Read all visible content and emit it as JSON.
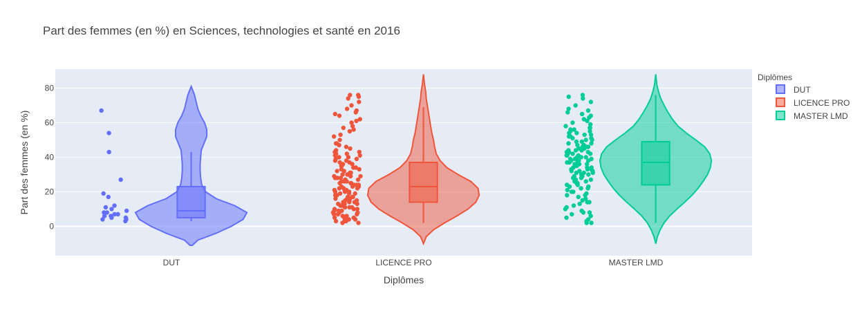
{
  "chart_data": {
    "type": "violin",
    "title": "Part des femmes (en %) en Sciences, technologies et santé en 2016",
    "xlabel": "Diplômes",
    "ylabel": "Part des femmes (en %)",
    "ylim": [
      -17,
      91
    ],
    "y_ticks": [
      0,
      20,
      40,
      60,
      80
    ],
    "grid": true,
    "legend": {
      "title": "Diplômes",
      "placement": "right"
    },
    "categories": [
      "DUT",
      "LICENCE PRO",
      "MASTER LMD"
    ],
    "series": [
      {
        "name": "DUT",
        "color": "#636efa",
        "violin_range": [
          -11,
          81
        ],
        "density_profile": [
          [
            -11,
            0.02
          ],
          [
            -8,
            0.12
          ],
          [
            -4,
            0.45
          ],
          [
            0,
            0.72
          ],
          [
            4,
            0.93
          ],
          [
            8,
            1.0
          ],
          [
            12,
            0.78
          ],
          [
            16,
            0.45
          ],
          [
            20,
            0.26
          ],
          [
            24,
            0.19
          ],
          [
            28,
            0.17
          ],
          [
            32,
            0.16
          ],
          [
            36,
            0.16
          ],
          [
            40,
            0.17
          ],
          [
            44,
            0.18
          ],
          [
            48,
            0.23
          ],
          [
            52,
            0.28
          ],
          [
            56,
            0.28
          ],
          [
            60,
            0.24
          ],
          [
            64,
            0.17
          ],
          [
            68,
            0.12
          ],
          [
            72,
            0.09
          ],
          [
            76,
            0.06
          ],
          [
            81,
            0.0
          ]
        ],
        "box": {
          "q1": 5,
          "median": 9,
          "q3": 23,
          "lower_fence": 3,
          "upper_fence": 43
        },
        "points": [
          3,
          4,
          4,
          5,
          5,
          6,
          6,
          7,
          7,
          8,
          8,
          9,
          10,
          11,
          12,
          17,
          19,
          27,
          43,
          54,
          67
        ]
      },
      {
        "name": "LICENCE PRO",
        "color": "#ef553b",
        "violin_range": [
          -10,
          88
        ],
        "density_profile": [
          [
            -10,
            0.0
          ],
          [
            -6,
            0.05
          ],
          [
            -2,
            0.18
          ],
          [
            2,
            0.38
          ],
          [
            6,
            0.6
          ],
          [
            10,
            0.8
          ],
          [
            14,
            0.94
          ],
          [
            18,
            1.0
          ],
          [
            22,
            0.98
          ],
          [
            26,
            0.85
          ],
          [
            30,
            0.62
          ],
          [
            34,
            0.42
          ],
          [
            38,
            0.3
          ],
          [
            42,
            0.23
          ],
          [
            46,
            0.2
          ],
          [
            50,
            0.18
          ],
          [
            54,
            0.15
          ],
          [
            58,
            0.13
          ],
          [
            62,
            0.11
          ],
          [
            66,
            0.09
          ],
          [
            70,
            0.07
          ],
          [
            74,
            0.05
          ],
          [
            78,
            0.04
          ],
          [
            82,
            0.02
          ],
          [
            88,
            0.0
          ]
        ],
        "box": {
          "q1": 14,
          "median": 23,
          "q3": 37,
          "lower_fence": 2,
          "upper_fence": 69
        },
        "points": [
          2,
          2,
          3,
          3,
          3,
          4,
          4,
          4,
          5,
          5,
          5,
          6,
          6,
          6,
          7,
          7,
          7,
          8,
          8,
          8,
          9,
          9,
          9,
          10,
          10,
          10,
          11,
          11,
          11,
          12,
          12,
          12,
          13,
          13,
          13,
          14,
          14,
          14,
          15,
          15,
          15,
          16,
          16,
          16,
          17,
          17,
          17,
          18,
          18,
          18,
          19,
          19,
          19,
          20,
          20,
          20,
          21,
          21,
          21,
          22,
          22,
          22,
          23,
          23,
          23,
          24,
          24,
          24,
          25,
          25,
          25,
          26,
          26,
          26,
          27,
          27,
          27,
          28,
          28,
          28,
          29,
          29,
          29,
          30,
          30,
          31,
          31,
          32,
          32,
          33,
          33,
          34,
          34,
          35,
          35,
          36,
          36,
          37,
          37,
          38,
          38,
          39,
          39,
          40,
          40,
          41,
          41,
          42,
          42,
          43,
          43,
          44,
          45,
          46,
          47,
          48,
          48,
          50,
          52,
          53,
          55,
          56,
          57,
          58,
          60,
          61,
          62,
          64,
          65,
          66,
          67,
          68,
          70,
          72,
          74,
          75,
          76,
          76
        ]
      },
      {
        "name": "MASTER LMD",
        "color": "#00cc96",
        "violin_range": [
          -10,
          88
        ],
        "density_profile": [
          [
            -10,
            0.0
          ],
          [
            -6,
            0.03
          ],
          [
            -2,
            0.08
          ],
          [
            2,
            0.15
          ],
          [
            6,
            0.25
          ],
          [
            10,
            0.38
          ],
          [
            14,
            0.52
          ],
          [
            18,
            0.65
          ],
          [
            22,
            0.76
          ],
          [
            26,
            0.85
          ],
          [
            30,
            0.93
          ],
          [
            34,
            0.98
          ],
          [
            38,
            1.0
          ],
          [
            42,
            0.97
          ],
          [
            46,
            0.88
          ],
          [
            50,
            0.72
          ],
          [
            54,
            0.55
          ],
          [
            58,
            0.4
          ],
          [
            62,
            0.3
          ],
          [
            66,
            0.22
          ],
          [
            70,
            0.15
          ],
          [
            74,
            0.09
          ],
          [
            78,
            0.05
          ],
          [
            82,
            0.02
          ],
          [
            88,
            0.0
          ]
        ],
        "box": {
          "q1": 24,
          "median": 37,
          "q3": 49,
          "lower_fence": 2,
          "upper_fence": 76
        },
        "points": [
          2,
          2,
          3,
          4,
          5,
          6,
          7,
          8,
          8,
          9,
          10,
          11,
          12,
          13,
          14,
          14,
          15,
          16,
          17,
          18,
          18,
          19,
          20,
          20,
          21,
          22,
          22,
          23,
          23,
          24,
          24,
          25,
          25,
          26,
          26,
          27,
          27,
          28,
          28,
          29,
          29,
          30,
          30,
          31,
          31,
          31,
          32,
          32,
          32,
          33,
          33,
          33,
          34,
          34,
          34,
          35,
          35,
          35,
          36,
          36,
          36,
          37,
          37,
          37,
          38,
          38,
          38,
          39,
          39,
          39,
          40,
          40,
          40,
          41,
          41,
          41,
          42,
          42,
          42,
          43,
          43,
          43,
          44,
          44,
          44,
          45,
          45,
          45,
          46,
          46,
          46,
          47,
          47,
          47,
          48,
          48,
          49,
          49,
          50,
          50,
          51,
          51,
          52,
          52,
          53,
          53,
          54,
          54,
          55,
          55,
          56,
          56,
          57,
          57,
          58,
          59,
          60,
          61,
          62,
          63,
          64,
          65,
          66,
          67,
          68,
          70,
          72,
          74,
          75,
          76
        ]
      }
    ]
  }
}
